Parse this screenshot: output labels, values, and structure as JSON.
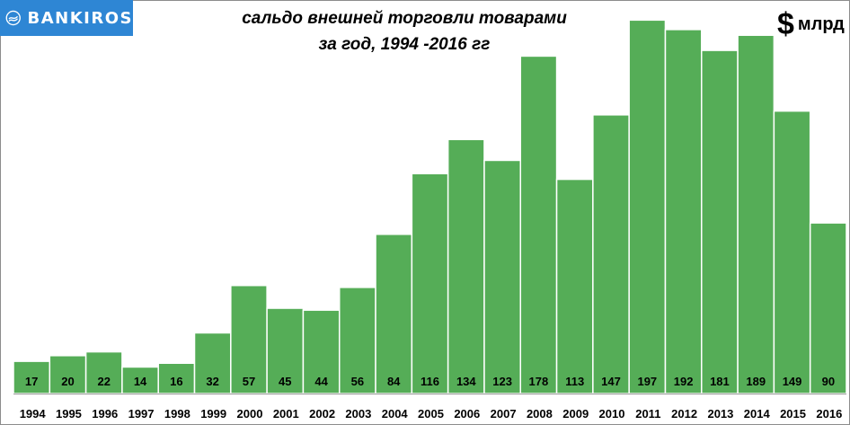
{
  "brand": {
    "name": "BANKIROS",
    "color": "#2e86d4"
  },
  "header": {
    "title_line1": "сальдо внешней торговли товарами",
    "title_line2": "за год, 1994 -2016 гг",
    "unit_currency": "$",
    "unit_magnitude": "млрд"
  },
  "chart_data": {
    "type": "bar",
    "title": "сальдо внешней торговли товарами за год, 1994 -2016 гг",
    "ylabel": "$ млрд",
    "ylim": [
      0,
      200
    ],
    "grid": false,
    "legend": "none",
    "bar_color": "#55ad57",
    "categories": [
      "1994",
      "1995",
      "1996",
      "1997",
      "1998",
      "1999",
      "2000",
      "2001",
      "2002",
      "2003",
      "2004",
      "2005",
      "2006",
      "2007",
      "2008",
      "2009",
      "2010",
      "2011",
      "2012",
      "2013",
      "2014",
      "2015",
      "2016"
    ],
    "values": [
      17,
      20,
      22,
      14,
      16,
      32,
      57,
      45,
      44,
      56,
      84,
      116,
      134,
      123,
      178,
      113,
      147,
      197,
      192,
      181,
      189,
      149,
      90
    ],
    "labels": [
      "17",
      "20",
      "22",
      "14",
      "16",
      "32",
      "57",
      "45",
      "44",
      "56",
      "84",
      "116",
      "134",
      "123",
      "178",
      "113",
      "147",
      "197",
      "192",
      "181",
      "189",
      "149",
      "90"
    ]
  }
}
